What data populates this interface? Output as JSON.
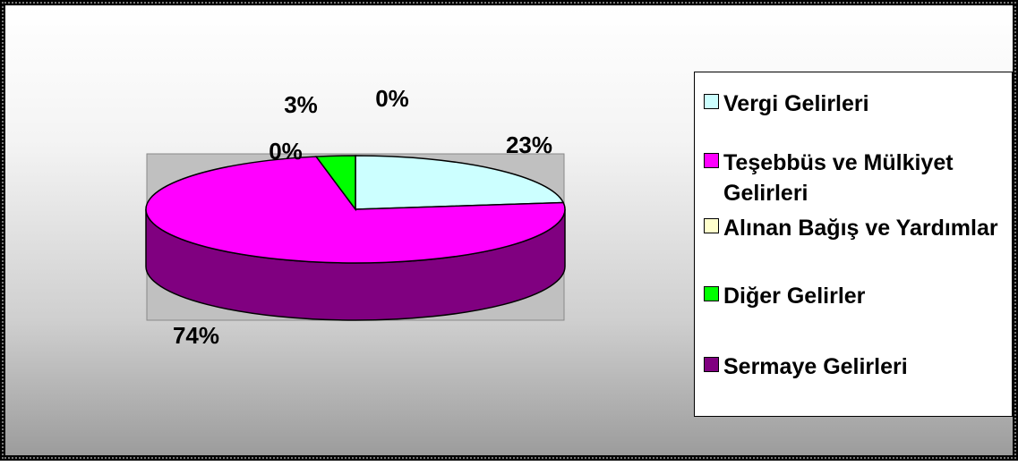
{
  "chart_data": {
    "type": "pie",
    "style": "3d",
    "legend_position": "right",
    "series": [
      {
        "name": "Vergi Gelirleri",
        "value": 23,
        "label": "23%",
        "color": "#CCFFFF"
      },
      {
        "name": "Sermaye Gelirleri",
        "value": 74,
        "label": "74%",
        "color": "#FF00FF",
        "side_color": "#800080"
      },
      {
        "name": "Alınan Bağış ve Yardımlar",
        "value": 0,
        "label": "0%",
        "color": "#FFFFCC"
      },
      {
        "name": "Diğer Gelirler",
        "value": 3,
        "label": "3%",
        "color": "#00FF00"
      },
      {
        "name": "Teşebbüs ve Mülkiyet Gelirleri",
        "value": 0,
        "label": "0%",
        "color": "#FF00FF"
      }
    ]
  },
  "legend": [
    {
      "label": "Vergi Gelirleri",
      "color": "#CCFFFF"
    },
    {
      "label": "Teşebbüs ve Mülkiyet Gelirleri",
      "color": "#FF00FF"
    },
    {
      "label": "Alınan Bağış ve Yardımlar",
      "color": "#FFFFCC"
    },
    {
      "label": "Diğer Gelirler",
      "color": "#00FF00"
    },
    {
      "label": "Sermaye Gelirleri",
      "color": "#800080"
    }
  ]
}
